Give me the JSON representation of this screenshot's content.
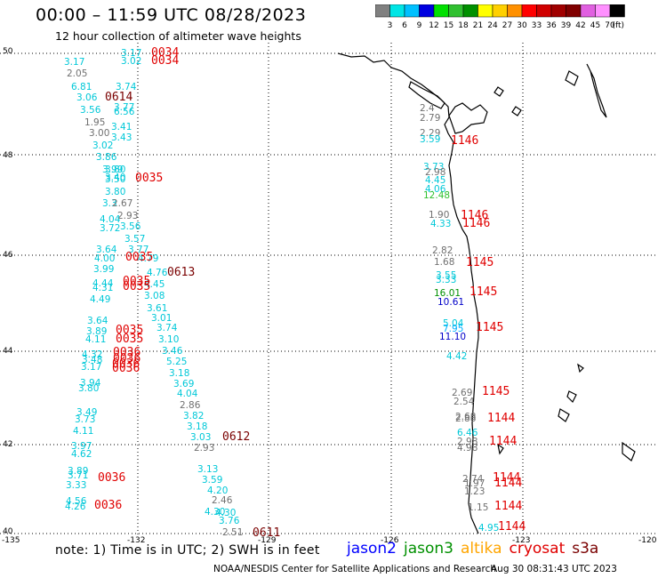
{
  "title": "00:00 – 11:59 UTC 08/28/2023",
  "subtitle": "12 hour collection of altimeter wave heights",
  "colorbar": {
    "unit": "(ft)",
    "labels": [
      "3",
      "6",
      "9",
      "12",
      "15",
      "18",
      "21",
      "24",
      "27",
      "30",
      "33",
      "36",
      "39",
      "42",
      "45",
      "70"
    ],
    "colors": [
      "#808080",
      "#00e5e5",
      "#00c0ff",
      "#0000e0",
      "#00e000",
      "#30c030",
      "#009000",
      "#ffff00",
      "#ffd000",
      "#ff9000",
      "#ff0000",
      "#d00000",
      "#a00000",
      "#800000",
      "#e060e0",
      "#ff90ff",
      "#000000"
    ]
  },
  "axes": {
    "lon_labels": [
      "-135",
      "-132",
      "-129",
      "-126",
      "-123",
      "-120"
    ],
    "lat_labels": [
      "50",
      "48",
      "46",
      "44",
      "42",
      "40"
    ]
  },
  "wave_heights": [
    {
      "v": "3.17",
      "c": "#00c8d8"
    },
    {
      "v": "3.02",
      "c": "#00c8d8"
    },
    {
      "v": "3.17",
      "c": "#00c8d8"
    },
    {
      "v": "2.05",
      "c": "#707070"
    },
    {
      "v": "3.74",
      "c": "#00c8d8"
    },
    {
      "v": "6.81",
      "c": "#00c8d8"
    },
    {
      "v": "3.06",
      "c": "#00c8d8"
    },
    {
      "v": "3.77",
      "c": "#00c8d8"
    },
    {
      "v": "3.56",
      "c": "#00c8d8"
    },
    {
      "v": "6.56",
      "c": "#00c8d8"
    },
    {
      "v": "1.95",
      "c": "#707070"
    },
    {
      "v": "3.41",
      "c": "#00c8d8"
    },
    {
      "v": "3.00",
      "c": "#707070"
    },
    {
      "v": "3.43",
      "c": "#00c8d8"
    },
    {
      "v": "3.02",
      "c": "#00c8d8"
    },
    {
      "v": "3.86",
      "c": "#00c8d8"
    },
    {
      "v": "3.99",
      "c": "#00c8d8"
    },
    {
      "v": "3.80",
      "c": "#00c8d8"
    },
    {
      "v": "3.50",
      "c": "#00c8d8"
    },
    {
      "v": "3.40",
      "c": "#00c8d8"
    },
    {
      "v": "3.80",
      "c": "#00c8d8"
    },
    {
      "v": "3.3",
      "c": "#00c8d8"
    },
    {
      "v": "2.67",
      "c": "#707070"
    },
    {
      "v": "2.93",
      "c": "#707070"
    },
    {
      "v": "4.04",
      "c": "#00c8d8"
    },
    {
      "v": "3.56",
      "c": "#00c8d8"
    },
    {
      "v": "3.72",
      "c": "#00c8d8"
    },
    {
      "v": "3.57",
      "c": "#00c8d8"
    },
    {
      "v": "3.64",
      "c": "#00c8d8"
    },
    {
      "v": "3.77",
      "c": "#00c8d8"
    },
    {
      "v": "4.00",
      "c": "#00c8d8"
    },
    {
      "v": "4.79",
      "c": "#00c8d8"
    },
    {
      "v": "3.99",
      "c": "#00c8d8"
    },
    {
      "v": "4.76",
      "c": "#00c8d8"
    },
    {
      "v": "4.44",
      "c": "#00c8d8"
    },
    {
      "v": "4.31",
      "c": "#00c8d8"
    },
    {
      "v": "4.45",
      "c": "#00c8d8"
    },
    {
      "v": "4.49",
      "c": "#00c8d8"
    },
    {
      "v": "3.08",
      "c": "#00c8d8"
    },
    {
      "v": "3.61",
      "c": "#00c8d8"
    },
    {
      "v": "3.64",
      "c": "#00c8d8"
    },
    {
      "v": "3.01",
      "c": "#00c8d8"
    },
    {
      "v": "3.89",
      "c": "#00c8d8"
    },
    {
      "v": "3.74",
      "c": "#00c8d8"
    },
    {
      "v": "4.11",
      "c": "#00c8d8"
    },
    {
      "v": "3.10",
      "c": "#00c8d8"
    },
    {
      "v": "3.46",
      "c": "#00c8d8"
    },
    {
      "v": "4.32",
      "c": "#00c8d8"
    },
    {
      "v": "3.48",
      "c": "#00c8d8"
    },
    {
      "v": "5.25",
      "c": "#00c8d8"
    },
    {
      "v": "3.17",
      "c": "#00c8d8"
    },
    {
      "v": "3.18",
      "c": "#00c8d8"
    },
    {
      "v": "3.94",
      "c": "#00c8d8"
    },
    {
      "v": "3.69",
      "c": "#00c8d8"
    },
    {
      "v": "3.80",
      "c": "#00c8d8"
    },
    {
      "v": "4.04",
      "c": "#00c8d8"
    },
    {
      "v": "2.86",
      "c": "#707070"
    },
    {
      "v": "3.49",
      "c": "#00c8d8"
    },
    {
      "v": "3.82",
      "c": "#00c8d8"
    },
    {
      "v": "3.73",
      "c": "#00c8d8"
    },
    {
      "v": "3.18",
      "c": "#00c8d8"
    },
    {
      "v": "4.11",
      "c": "#00c8d8"
    },
    {
      "v": "3.03",
      "c": "#00c8d8"
    },
    {
      "v": "3.97",
      "c": "#00c8d8"
    },
    {
      "v": "2.93",
      "c": "#707070"
    },
    {
      "v": "4.62",
      "c": "#00c8d8"
    },
    {
      "v": "3.13",
      "c": "#00c8d8"
    },
    {
      "v": "3.59",
      "c": "#00c8d8"
    },
    {
      "v": "3.89",
      "c": "#00c8d8"
    },
    {
      "v": "4.30",
      "c": "#00c8d8"
    },
    {
      "v": "3.71",
      "c": "#00c8d8"
    },
    {
      "v": "4.20",
      "c": "#00c8d8"
    },
    {
      "v": "3.33",
      "c": "#00c8d8"
    },
    {
      "v": "2.46",
      "c": "#707070"
    },
    {
      "v": "4.56",
      "c": "#00c8d8"
    },
    {
      "v": "4.30",
      "c": "#00c8d8"
    },
    {
      "v": "4.26",
      "c": "#00c8d8"
    },
    {
      "v": "3.76",
      "c": "#00c8d8"
    },
    {
      "v": "2.51",
      "c": "#707070"
    },
    {
      "v": "2.4",
      "c": "#707070"
    },
    {
      "v": "2.79",
      "c": "#707070"
    },
    {
      "v": "2.29",
      "c": "#707070"
    },
    {
      "v": "3.59",
      "c": "#00c8d8"
    },
    {
      "v": "3.73",
      "c": "#00c8d8"
    },
    {
      "v": "2.98",
      "c": "#707070"
    },
    {
      "v": "4.45",
      "c": "#00c8d8"
    },
    {
      "v": "4.06",
      "c": "#00c8d8"
    },
    {
      "v": "12.48",
      "c": "#30c030"
    },
    {
      "v": "1.90",
      "c": "#707070"
    },
    {
      "v": "4.33",
      "c": "#00c8d8"
    },
    {
      "v": "2.82",
      "c": "#707070"
    },
    {
      "v": "1.68",
      "c": "#707070"
    },
    {
      "v": "3.55",
      "c": "#00c8d8"
    },
    {
      "v": "3.33",
      "c": "#00c8d8"
    },
    {
      "v": "16.01",
      "c": "#009000"
    },
    {
      "v": "10.61",
      "c": "#0000c8"
    },
    {
      "v": "5.04",
      "c": "#00c8d8"
    },
    {
      "v": "7.95",
      "c": "#00b0ff"
    },
    {
      "v": "11.10",
      "c": "#0000c8"
    },
    {
      "v": "4.42",
      "c": "#00c8d8"
    },
    {
      "v": "2.69",
      "c": "#707070"
    },
    {
      "v": "2.54",
      "c": "#707070"
    },
    {
      "v": "2.88",
      "c": "#707070"
    },
    {
      "v": "2.68",
      "c": "#707070"
    },
    {
      "v": "6.46",
      "c": "#00c8d8"
    },
    {
      "v": "2.98",
      "c": "#707070"
    },
    {
      "v": "4.98",
      "c": "#707070"
    },
    {
      "v": "2.74",
      "c": "#707070"
    },
    {
      "v": "1.97",
      "c": "#707070"
    },
    {
      "v": "1.23",
      "c": "#707070"
    },
    {
      "v": "1.15",
      "c": "#707070"
    },
    {
      "v": "4.95",
      "c": "#00c8d8"
    }
  ],
  "pass_times": [
    {
      "v": "0034",
      "c": "#e00000"
    },
    {
      "v": "0034",
      "c": "#e00000"
    },
    {
      "v": "0614",
      "c": "#7a0000"
    },
    {
      "v": "0035",
      "c": "#e00000"
    },
    {
      "v": "0035",
      "c": "#e00000"
    },
    {
      "v": "0613",
      "c": "#7a0000"
    },
    {
      "v": "0035",
      "c": "#e00000"
    },
    {
      "v": "0035",
      "c": "#e00000"
    },
    {
      "v": "0035",
      "c": "#e00000"
    },
    {
      "v": "0035",
      "c": "#e00000"
    },
    {
      "v": "0036",
      "c": "#e00000"
    },
    {
      "v": "0036",
      "c": "#e00000"
    },
    {
      "v": "0036",
      "c": "#e00000"
    },
    {
      "v": "0036",
      "c": "#e00000"
    },
    {
      "v": "0612",
      "c": "#7a0000"
    },
    {
      "v": "0036",
      "c": "#e00000"
    },
    {
      "v": "0036",
      "c": "#e00000"
    },
    {
      "v": "0611",
      "c": "#7a0000"
    },
    {
      "v": "1146",
      "c": "#e00000"
    },
    {
      "v": "1146",
      "c": "#e00000"
    },
    {
      "v": "1146",
      "c": "#e00000"
    },
    {
      "v": "1145",
      "c": "#e00000"
    },
    {
      "v": "1145",
      "c": "#e00000"
    },
    {
      "v": "1145",
      "c": "#e00000"
    },
    {
      "v": "1145",
      "c": "#e00000"
    },
    {
      "v": "1144",
      "c": "#e00000"
    },
    {
      "v": "1144",
      "c": "#e00000"
    },
    {
      "v": "1144",
      "c": "#e00000"
    },
    {
      "v": "1144",
      "c": "#e00000"
    },
    {
      "v": "1144",
      "c": "#e00000"
    },
    {
      "v": "1144",
      "c": "#e00000"
    }
  ],
  "note": "note: 1) Time is in UTC; 2) SWH is in feet",
  "satellites": [
    {
      "name": "jason2",
      "color": "#0000ff"
    },
    {
      "name": "jason3",
      "color": "#009000"
    },
    {
      "name": "altika",
      "color": "#ffa500"
    },
    {
      "name": "cryosat",
      "color": "#e00000"
    },
    {
      "name": "s3a",
      "color": "#7a0000"
    }
  ],
  "credit": "NOAA/NESDIS Center for Satellite Applications and Research",
  "timestamp": "Aug 30 08:31:43 UTC 2023"
}
